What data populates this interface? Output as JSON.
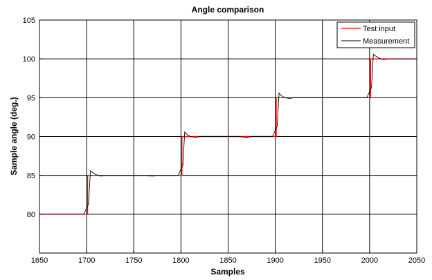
{
  "chart_data": {
    "type": "line",
    "title": "Angle comparison",
    "xlabel": "Samples",
    "ylabel": "Sample angle (deg.)",
    "xlim": [
      1650,
      2050
    ],
    "ylim": [
      75,
      105
    ],
    "x_ticks": [
      1650,
      1700,
      1750,
      1800,
      1850,
      1900,
      1950,
      2000,
      2050
    ],
    "y_ticks": [
      80,
      85,
      90,
      95,
      100,
      105
    ],
    "grid": true,
    "legend_position": "top-right",
    "series": [
      {
        "name": "Test input",
        "color": "#ff0000",
        "x": [
          1650,
          1701,
          1701,
          1801,
          1801,
          1901,
          1901,
          2001,
          2001,
          2050
        ],
        "y": [
          80,
          80,
          85,
          85,
          90,
          90,
          95,
          95,
          100,
          100
        ]
      },
      {
        "name": "Measurement",
        "color": "#000000",
        "x": [
          1650,
          1697,
          1700,
          1702,
          1704,
          1706,
          1710,
          1715,
          1720,
          1760,
          1770,
          1775,
          1797,
          1800,
          1802,
          1804,
          1806,
          1810,
          1815,
          1820,
          1860,
          1870,
          1875,
          1897,
          1900,
          1902,
          1904,
          1906,
          1910,
          1915,
          1920,
          1997,
          2000,
          2002,
          2004,
          2006,
          2010,
          2015,
          2020,
          2050
        ],
        "y": [
          80,
          80,
          80.8,
          81.3,
          85.6,
          85.4,
          85.1,
          84.9,
          85,
          85,
          84.9,
          85,
          85,
          85.8,
          86.3,
          90.6,
          90.3,
          90.0,
          89.9,
          90,
          90,
          89.9,
          90,
          90,
          90.8,
          91.3,
          95.6,
          95.3,
          95.0,
          94.9,
          95,
          95,
          95.8,
          96.3,
          100.6,
          100.4,
          100.1,
          99.9,
          100,
          100
        ]
      }
    ]
  }
}
